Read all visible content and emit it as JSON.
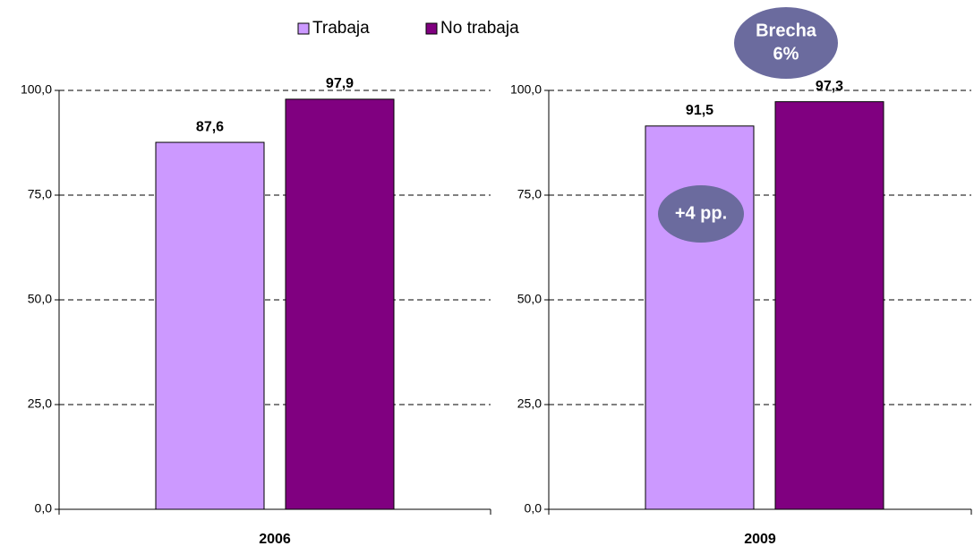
{
  "chart_data": {
    "type": "bar",
    "categories": [
      "2006",
      "2009"
    ],
    "series": [
      {
        "name": "Trabaja",
        "color": "#cc99ff",
        "values": [
          87.6,
          91.5
        ],
        "value_labels": [
          "87,6",
          "91,5"
        ]
      },
      {
        "name": "No trabaja",
        "color": "#800080",
        "values": [
          97.9,
          97.3
        ],
        "value_labels": [
          "97,9",
          "97,3"
        ]
      }
    ],
    "ylim": [
      0,
      100
    ],
    "yticks": [
      {
        "value": 0,
        "label": "0,0"
      },
      {
        "value": 25,
        "label": "25,0"
      },
      {
        "value": 50,
        "label": "50,0"
      },
      {
        "value": 75,
        "label": "75,0"
      },
      {
        "value": 100,
        "label": "100,0"
      }
    ],
    "grid": true,
    "legend": "top",
    "annotations": [
      {
        "lines": [
          "Brecha",
          "6%"
        ]
      },
      {
        "lines": [
          "+4 pp."
        ]
      }
    ]
  }
}
